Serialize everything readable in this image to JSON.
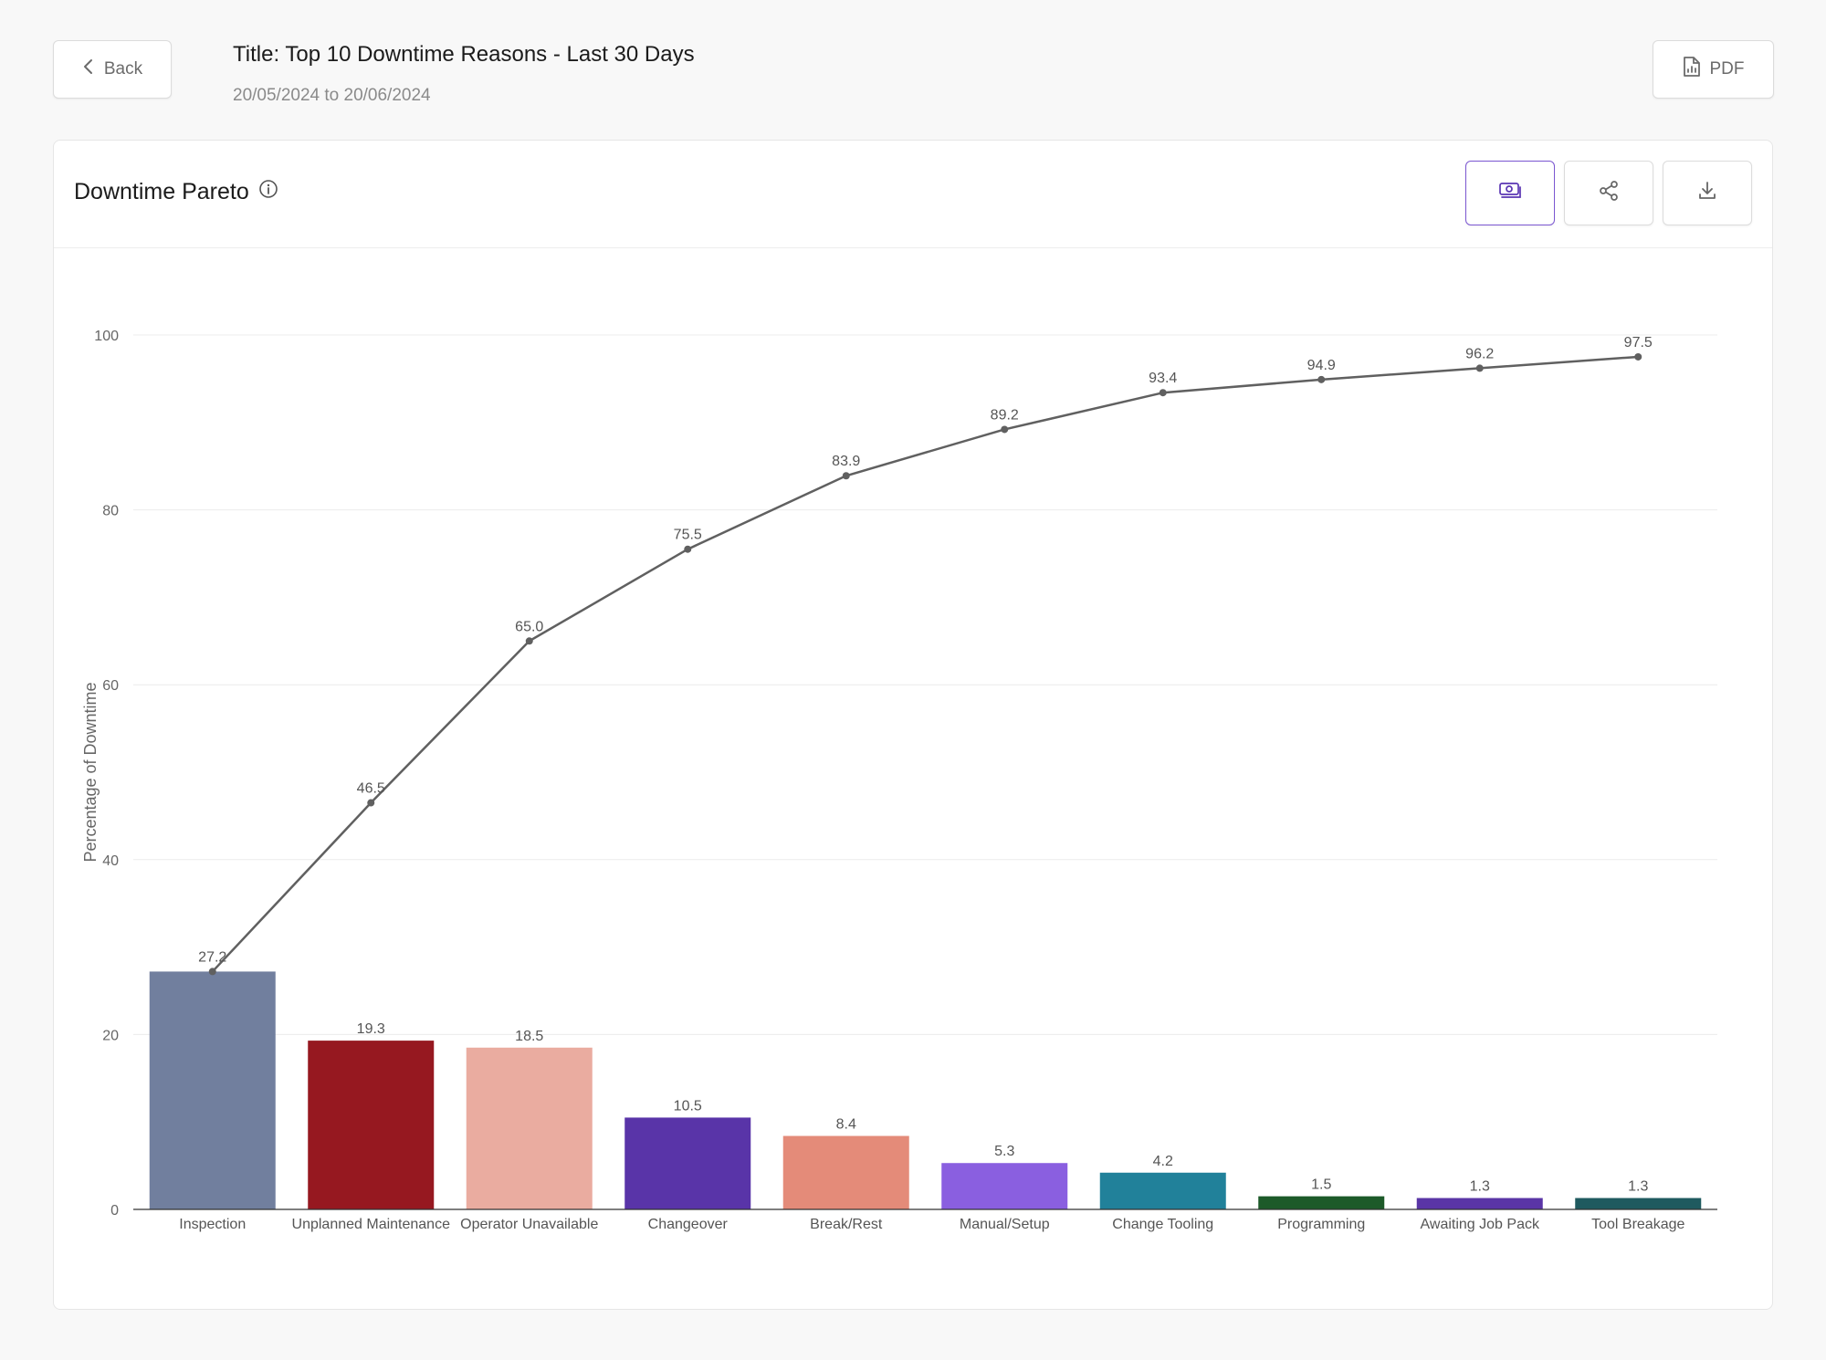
{
  "header": {
    "back_label": "Back",
    "title": "Title: Top 10 Downtime Reasons - Last 30 Days",
    "date_range": "20/05/2024 to 20/06/2024",
    "pdf_label": "PDF"
  },
  "card": {
    "title": "Downtime Pareto",
    "icons": [
      "info-icon",
      "money-icon",
      "share-icon",
      "download-icon"
    ]
  },
  "colors": {
    "line": "#606060",
    "accent": "#7b57d1"
  },
  "chart_data": {
    "type": "bar",
    "categories": [
      "Inspection",
      "Unplanned Maintenance",
      "Operator Unavailable",
      "Changeover",
      "Break/Rest",
      "Manual/Setup",
      "Change Tooling",
      "Programming",
      "Awaiting Job Pack",
      "Tool Breakage"
    ],
    "series": [
      {
        "type": "bar",
        "values": [
          27.2,
          19.3,
          18.5,
          10.5,
          8.4,
          5.3,
          4.2,
          1.5,
          1.3,
          1.3
        ],
        "colors": [
          "#717f9e",
          "#961820",
          "#eaaca0",
          "#5934a8",
          "#e48b79",
          "#8a5fe0",
          "#21819a",
          "#1d5a29",
          "#5a35a6",
          "#1f5a5f"
        ]
      },
      {
        "type": "line",
        "values": [
          27.2,
          46.5,
          65.0,
          75.5,
          83.9,
          89.2,
          93.4,
          94.9,
          96.2,
          97.5
        ],
        "label_text": [
          "27.2",
          "46.5",
          "65.0",
          "75.5",
          "83.9",
          "89.2",
          "93.4",
          "94.9",
          "96.2",
          "97.5"
        ]
      }
    ],
    "ylabel": "Percentage of Downtime",
    "xlabel": "",
    "ylim": [
      0,
      100
    ],
    "yticks": [
      0,
      20,
      40,
      60,
      80,
      100
    ],
    "grid": true
  }
}
